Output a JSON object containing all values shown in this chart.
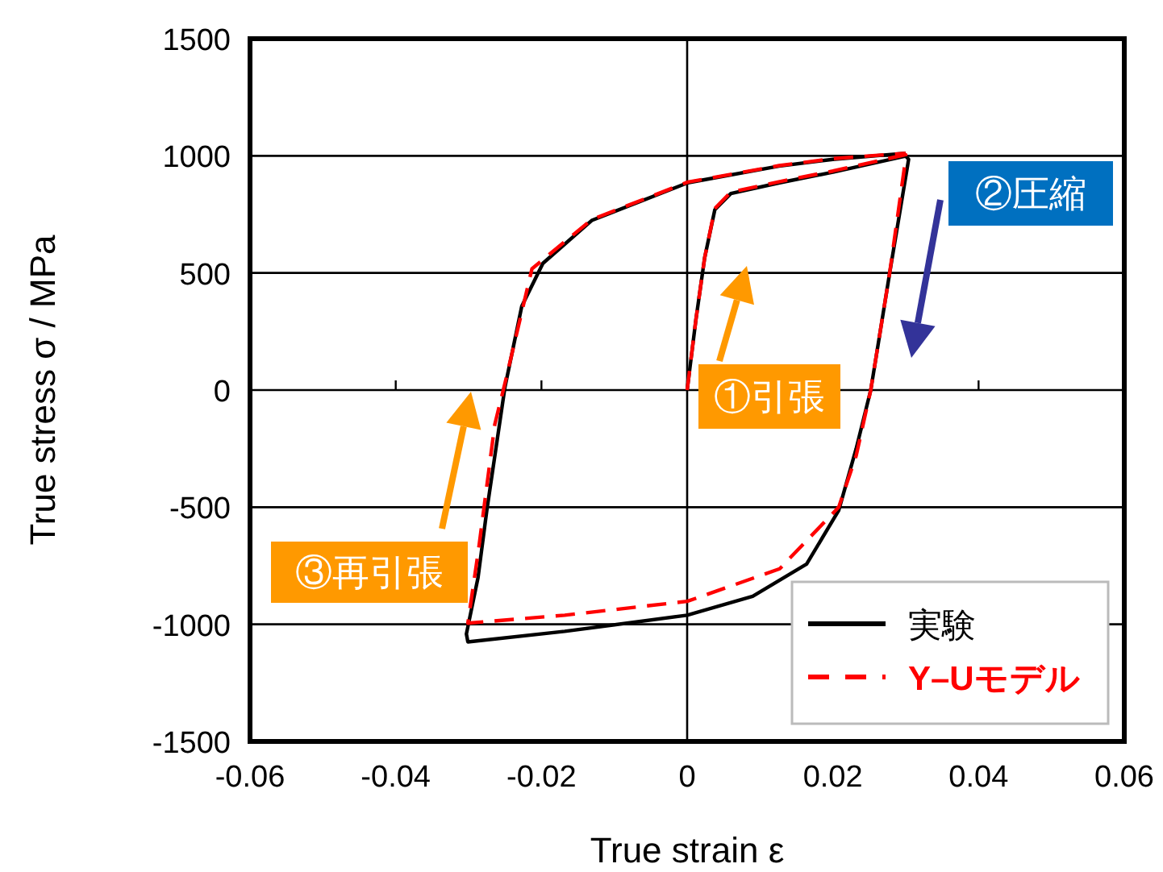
{
  "chart_data": {
    "type": "line",
    "xlabel": "True strain ε",
    "ylabel": "True stress σ / MPa",
    "xlim": [
      -0.06,
      0.06
    ],
    "xticks": [
      -0.06,
      -0.04,
      -0.02,
      0,
      0.02,
      0.04,
      0.06
    ],
    "ylim": [
      -1500,
      1500
    ],
    "yticks": [
      -1500,
      -1000,
      -500,
      0,
      500,
      1000,
      1500
    ],
    "grid": "y",
    "legend": "bottom right",
    "ref_lines": [
      {
        "axis": "x",
        "value": 0,
        "color": "#000000"
      }
    ],
    "annotations": [
      "①引張",
      "②圧縮",
      "③再引張"
    ],
    "series": [
      {
        "name": "実験",
        "color": "#000000",
        "line_style": "solid",
        "x": [
          0,
          0.0012,
          0.0024,
          0.0038,
          0.006,
          0.0127,
          0.02,
          0.03,
          0.0304,
          0.0278,
          0.0252,
          0.0232,
          0.0208,
          0.0164,
          0.009,
          0,
          -0.0168,
          -0.0301,
          -0.0303,
          -0.0287,
          -0.0275,
          -0.025,
          -0.0227,
          -0.0198,
          -0.0131,
          0.0001,
          0.0126,
          0.02,
          0.03
        ],
        "values": [
          0,
          300,
          564,
          770,
          839,
          885,
          930,
          999,
          985,
          500,
          0,
          -250,
          -514,
          -743,
          -880,
          -961,
          -1030,
          -1075,
          -1041,
          -800,
          -514,
          14,
          358,
          541,
          724,
          885,
          956,
          985,
          1011
        ]
      },
      {
        "name": "Y–Uモデル",
        "color": "#ff0000",
        "line_style": "dashed",
        "x": [
          0,
          0.0012,
          0.0024,
          0.0038,
          0.006,
          0.0127,
          0.02,
          0.03,
          0.03,
          0.0278,
          0.0252,
          0.0232,
          0.0208,
          0.0127,
          0,
          -0.0168,
          -0.0301,
          -0.0286,
          -0.0264,
          -0.025,
          -0.0213,
          -0.0131,
          0.0001,
          0.0126,
          0.02,
          0.03
        ],
        "values": [
          0,
          300,
          564,
          775,
          845,
          890,
          935,
          1005,
          990,
          500,
          0,
          -280,
          -500,
          -763,
          -902,
          -961,
          -995,
          -674,
          -146,
          30,
          518,
          728,
          888,
          958,
          988,
          1011
        ]
      }
    ]
  }
}
